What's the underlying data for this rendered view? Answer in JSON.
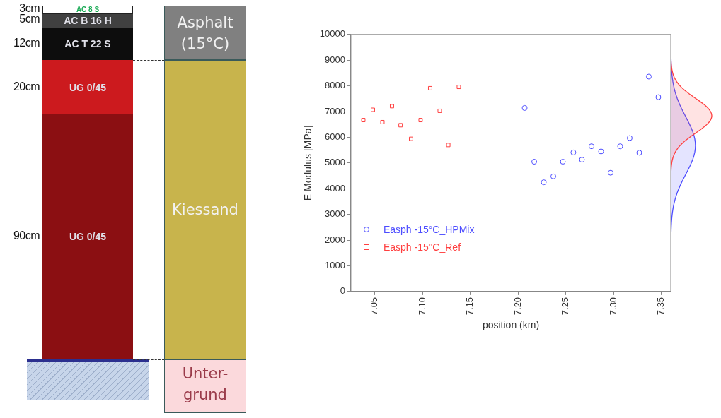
{
  "chart_data": [
    {
      "type": "other",
      "categories": [
        "AC 8 S",
        "AC B 16 H",
        "AC T 22 S",
        "UG 0/45",
        "UG 0/45"
      ],
      "values": [
        3,
        5,
        12,
        20,
        90
      ],
      "value_labels": [
        "3cm",
        "5cm",
        "12cm",
        "20cm",
        "90cm"
      ],
      "colors": [
        "#ffffff",
        "#404040",
        "#0d0d0d",
        "#cc1a1e",
        "#8b0f12"
      ],
      "annotations": [
        "Asphalt (15°C)",
        "Kiessand",
        "Unter-grund"
      ]
    },
    {
      "type": "scatter",
      "xlabel": "position (km)",
      "ylabel": "E Modulus [MPa]",
      "xlim": [
        7.025,
        7.36
      ],
      "xticks": [
        {
          "value": 7.05,
          "label": "7.05"
        },
        {
          "value": 7.1,
          "label": "7.10"
        },
        {
          "value": 7.15,
          "label": "7.15"
        },
        {
          "value": 7.2,
          "label": "7.20"
        },
        {
          "value": 7.25,
          "label": "7.25"
        },
        {
          "value": 7.3,
          "label": "7.30"
        },
        {
          "value": 7.35,
          "label": "7.35"
        }
      ],
      "ylim": [
        0,
        10000
      ],
      "yticks": [
        0,
        1000,
        2000,
        3000,
        4000,
        5000,
        6000,
        7000,
        8000,
        9000,
        10000
      ],
      "grid": false,
      "legend": "bottom left",
      "series": [
        {
          "name": "Easph -15°C_HPMix",
          "color": "#4d4dff",
          "marker": "circle",
          "x": [
            7.207,
            7.217,
            7.227,
            7.237,
            7.247,
            7.258,
            7.267,
            7.277,
            7.287,
            7.297,
            7.307,
            7.317,
            7.327,
            7.337,
            7.347
          ],
          "values": [
            7140,
            5050,
            4250,
            4480,
            5050,
            5410,
            5130,
            5650,
            5450,
            4620,
            5650,
            5970,
            5400,
            8360,
            7560
          ]
        },
        {
          "name": "Easph -15°C_Ref",
          "color": "#ff4040",
          "marker": "square",
          "x": [
            7.038,
            7.048,
            7.058,
            7.068,
            7.077,
            7.088,
            7.098,
            7.108,
            7.118,
            7.127,
            7.138
          ],
          "values": [
            6670,
            7070,
            6590,
            7210,
            6470,
            5940,
            6670,
            7910,
            7030,
            5700,
            7960
          ]
        }
      ]
    }
  ]
}
